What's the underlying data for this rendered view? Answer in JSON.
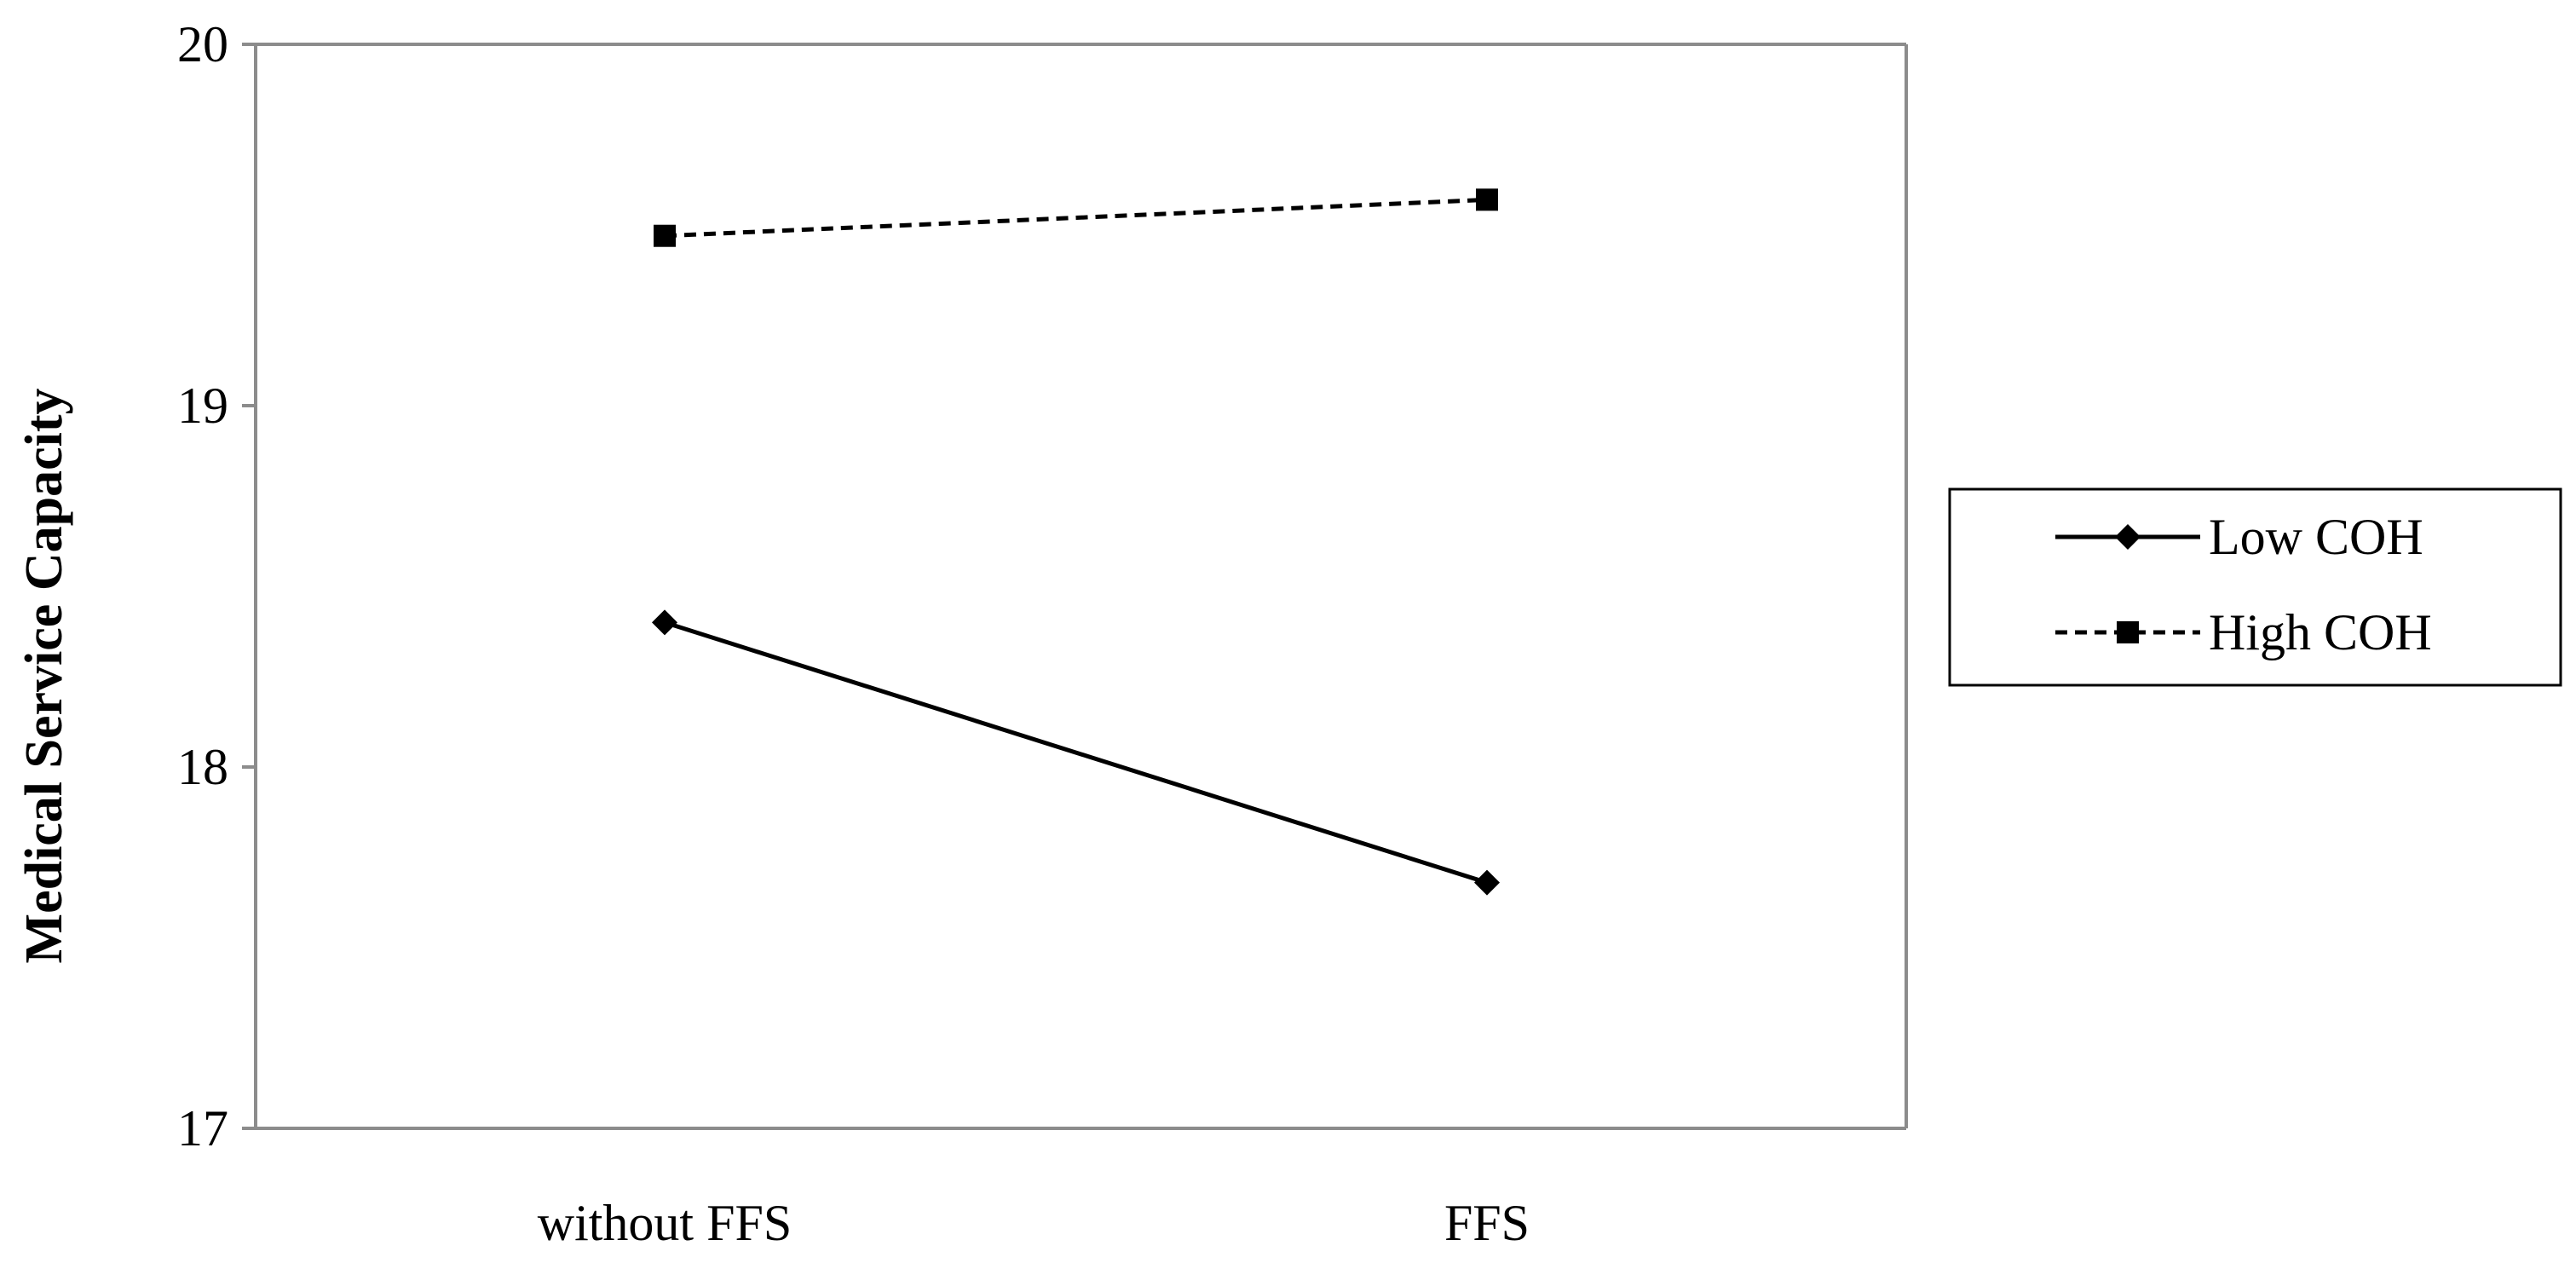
{
  "chart_data": {
    "type": "line",
    "title": "",
    "xlabel": "",
    "ylabel": "Medical Service Capacity",
    "categories": [
      "without FFS",
      "FFS"
    ],
    "ylim": [
      17,
      20
    ],
    "yticks": [
      17,
      18,
      19,
      20
    ],
    "grid": false,
    "legend_position": "right",
    "series": [
      {
        "name": "Low COH",
        "values": [
          18.4,
          17.68
        ],
        "line_style": "solid",
        "marker": "diamond",
        "color": "#000000"
      },
      {
        "name": "High COH",
        "values": [
          19.47,
          19.57
        ],
        "line_style": "dashed",
        "marker": "square",
        "color": "#000000"
      }
    ]
  }
}
